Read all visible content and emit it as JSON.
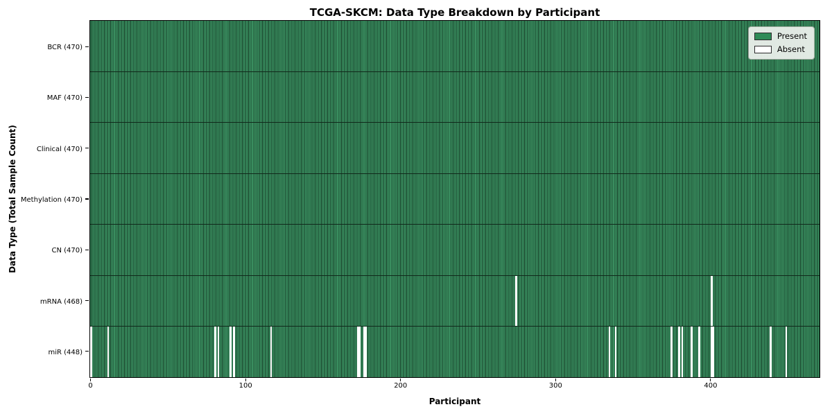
{
  "chart_data": {
    "type": "heatmap",
    "title": "TCGA-SKCM: Data Type Breakdown by Participant",
    "xlabel": "Participant",
    "ylabel": "Data Type (Total Sample Count)",
    "x_ticks": [
      0,
      100,
      200,
      300,
      400
    ],
    "x_range": [
      0,
      470
    ],
    "n_participants": 470,
    "grid": false,
    "legend_position": "upper right",
    "legend": [
      {
        "label": "Present",
        "color": "#2e8b57"
      },
      {
        "label": "Absent",
        "color": "#ffffff"
      }
    ],
    "colors": {
      "present_fill": "#3a8f60",
      "cell_edge": "#173e28",
      "row_separator": "#10281a",
      "frame": "#000000",
      "absent": "#ffffff"
    },
    "rows": [
      {
        "label": "BCR (470)",
        "data_type": "BCR",
        "total_samples": 470,
        "absent_participants": []
      },
      {
        "label": "MAF (470)",
        "data_type": "MAF",
        "total_samples": 470,
        "absent_participants": []
      },
      {
        "label": "Clinical (470)",
        "data_type": "Clinical",
        "total_samples": 470,
        "absent_participants": []
      },
      {
        "label": "Methylation (470)",
        "data_type": "Methylation",
        "total_samples": 470,
        "absent_participants": []
      },
      {
        "label": "CN (470)",
        "data_type": "CN",
        "total_samples": 470,
        "absent_participants": []
      },
      {
        "label": "mRNA (468)",
        "data_type": "mRNA",
        "total_samples": 468,
        "absent_participants": [
          274,
          400
        ]
      },
      {
        "label": "miR (448)",
        "data_type": "miR",
        "total_samples": 448,
        "absent_participants": [
          0,
          11,
          80,
          82,
          90,
          92,
          116,
          172,
          173,
          176,
          177,
          334,
          338,
          374,
          379,
          381,
          387,
          392,
          400,
          401,
          438,
          448
        ]
      }
    ]
  }
}
